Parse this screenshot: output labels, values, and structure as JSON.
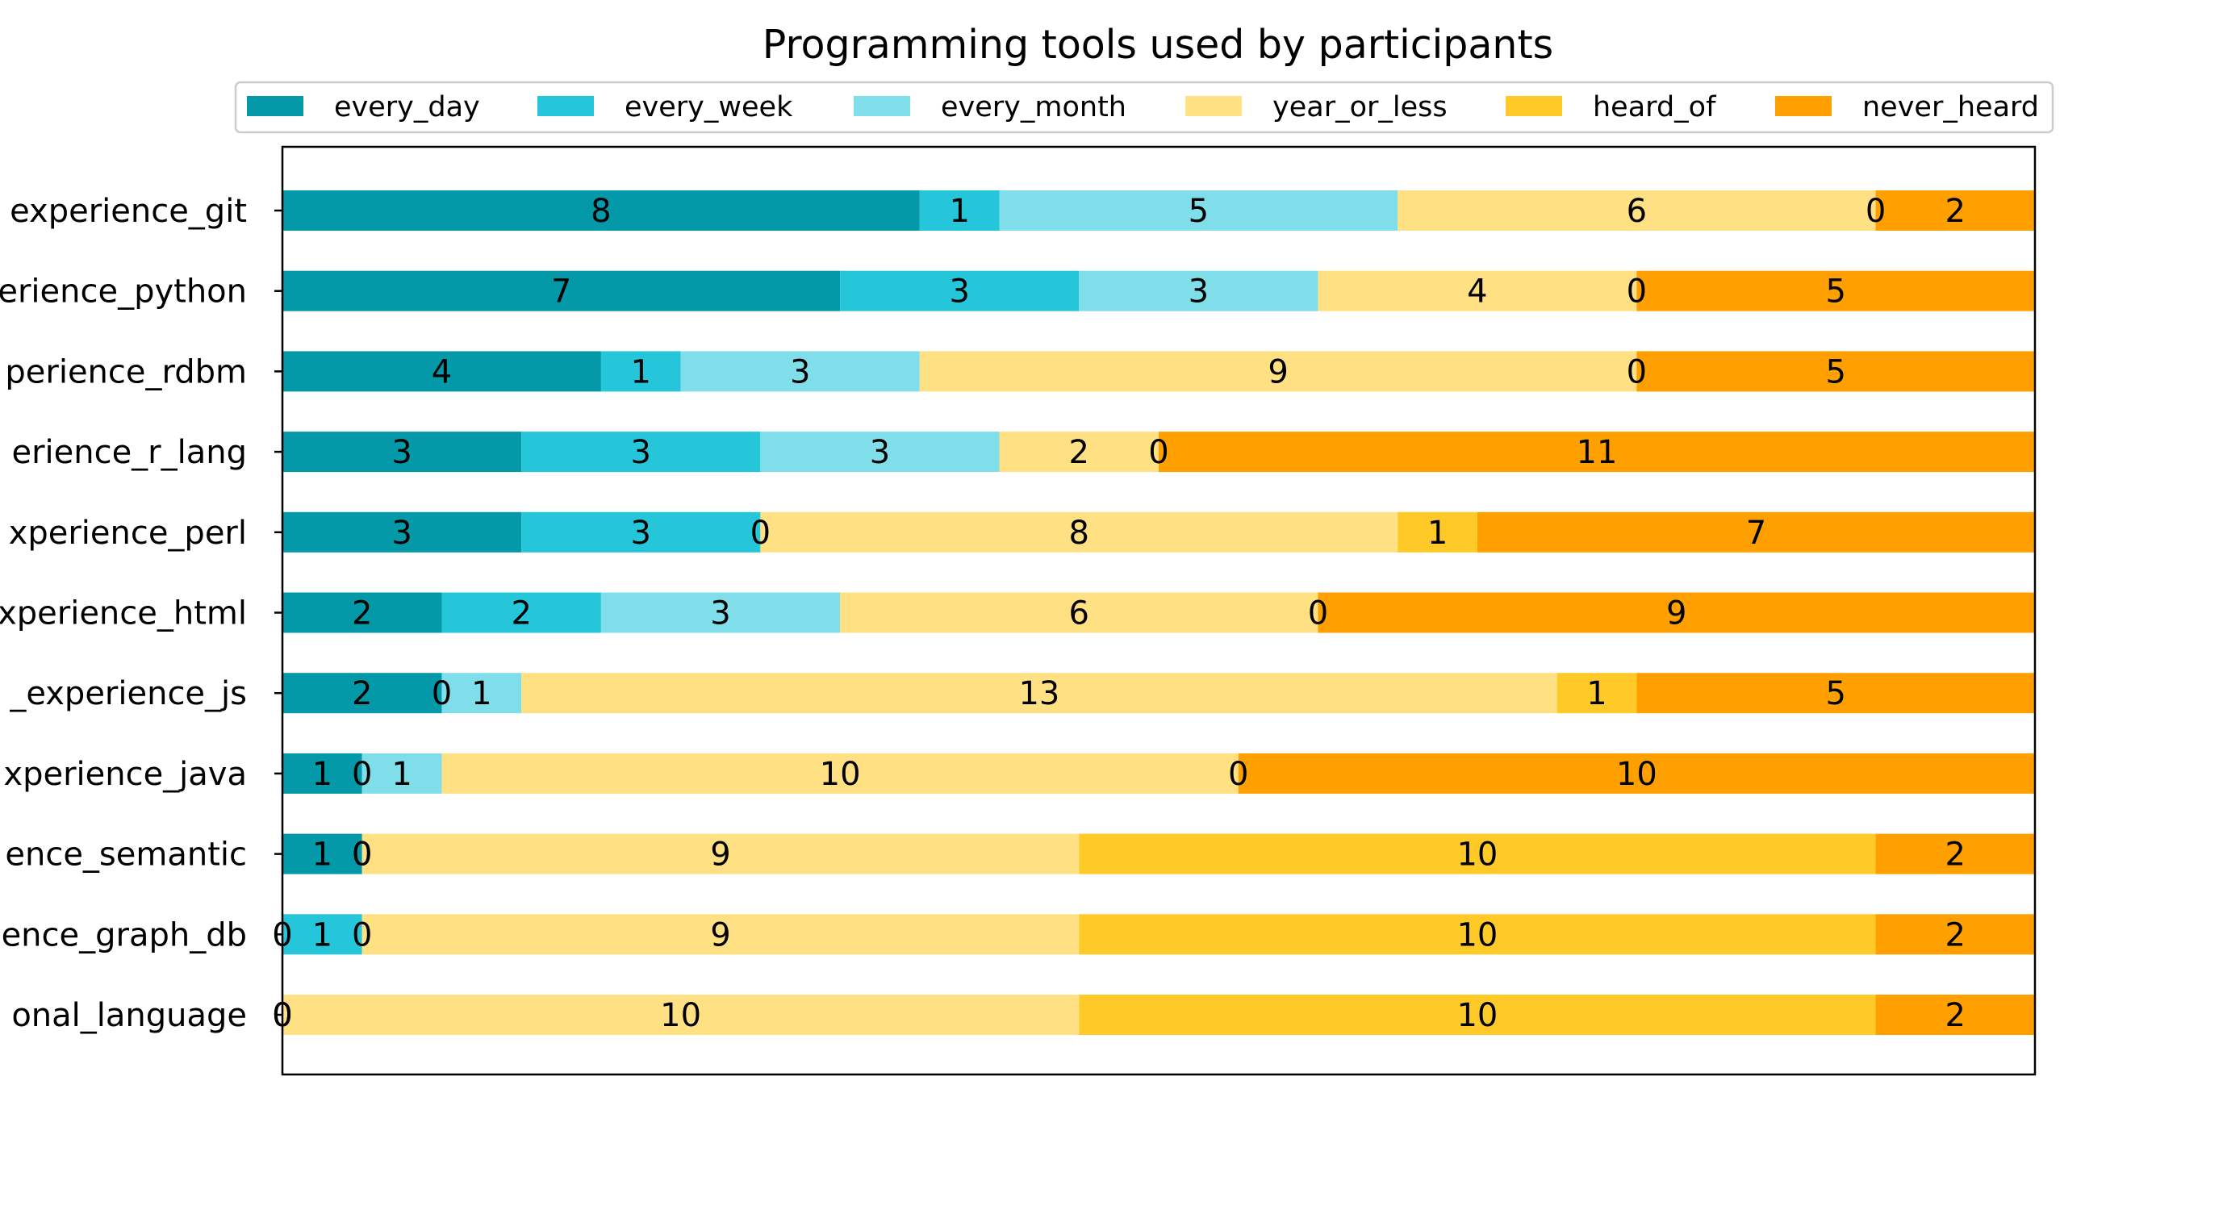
{
  "chart_data": {
    "type": "bar",
    "orientation": "horizontal",
    "stacked": true,
    "title": "Programming tools used by participants",
    "xlabel": "",
    "ylabel": "",
    "xlim": [
      0,
      22
    ],
    "grid": false,
    "legend_placement": "top-center",
    "categories": [
      "experience_git",
      "erience_python",
      "perience_rdbm",
      "erience_r_lang",
      "xperience_perl",
      "xperience_html",
      "_experience_js",
      "xperience_java",
      "ence_semantic",
      "ence_graph_db",
      "onal_language"
    ],
    "series": [
      {
        "name": "every_day",
        "color": "#0399A8",
        "values": [
          8,
          7,
          4,
          3,
          3,
          2,
          2,
          1,
          1,
          0,
          0
        ]
      },
      {
        "name": "every_week",
        "color": "#26C6DA",
        "values": [
          1,
          3,
          1,
          3,
          3,
          2,
          0,
          0,
          0,
          1,
          0
        ]
      },
      {
        "name": "every_month",
        "color": "#80DEEA",
        "values": [
          5,
          3,
          3,
          3,
          0,
          3,
          1,
          1,
          0,
          0,
          0
        ]
      },
      {
        "name": "year_or_less",
        "color": "#FFE082",
        "values": [
          6,
          4,
          9,
          2,
          8,
          6,
          13,
          10,
          9,
          9,
          10
        ]
      },
      {
        "name": "heard_of",
        "color": "#FFCA28",
        "values": [
          0,
          0,
          0,
          0,
          1,
          0,
          1,
          0,
          10,
          10,
          10
        ]
      },
      {
        "name": "never_heard",
        "color": "#FFA000",
        "values": [
          2,
          5,
          5,
          11,
          7,
          9,
          5,
          10,
          2,
          2,
          2
        ]
      }
    ]
  }
}
